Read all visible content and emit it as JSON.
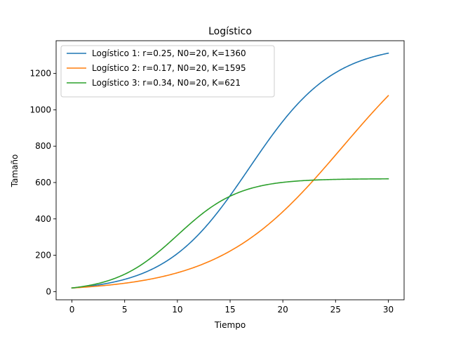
{
  "chart_data": {
    "type": "line",
    "title": "Logístico",
    "xlabel": "Tiempo",
    "ylabel": "Tamaño",
    "xlim": [
      -1.5,
      31.5
    ],
    "ylim": [
      -45,
      1380
    ],
    "xticks": [
      0,
      5,
      10,
      15,
      20,
      25,
      30
    ],
    "yticks": [
      0,
      200,
      400,
      600,
      800,
      1000,
      1200
    ],
    "grid": false,
    "legend_position": "top-left",
    "x_range": [
      0,
      30
    ],
    "series": [
      {
        "name": "Logístico 1: r=0.25, N0=20, K=1360",
        "color": "#1f77b4",
        "r": 0.25,
        "N0": 20,
        "K": 1360
      },
      {
        "name": "Logístico 2: r=0.17, N0=20, K=1595",
        "color": "#ff7f0e",
        "r": 0.17,
        "N0": 20,
        "K": 1595
      },
      {
        "name": "Logístico 3: r=0.34, N0=20, K=621",
        "color": "#2ca02c",
        "r": 0.34,
        "N0": 20,
        "K": 621
      }
    ]
  }
}
